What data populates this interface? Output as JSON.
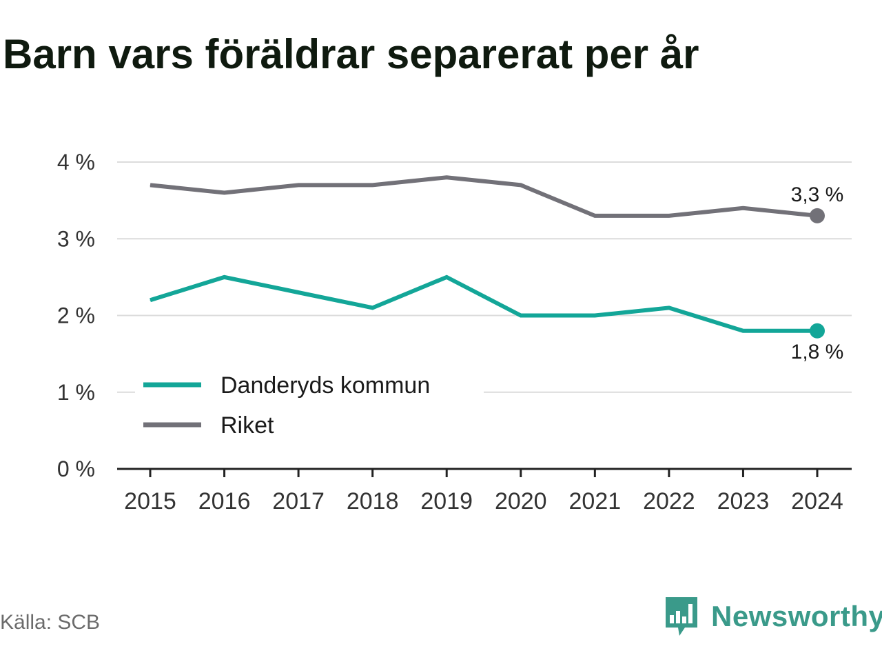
{
  "title": "Barn vars föräldrar separerat per år",
  "source": "Källa: SCB",
  "brand": {
    "name": "Newsworthy",
    "icon": "newsworthy-logo-icon",
    "color": "#3a9a8a"
  },
  "chart_data": {
    "type": "line",
    "title": "Barn vars föräldrar separerat per år",
    "x": [
      "2015",
      "2016",
      "2017",
      "2018",
      "2019",
      "2020",
      "2021",
      "2022",
      "2023",
      "2024"
    ],
    "y_ticks": [
      0,
      1,
      2,
      3,
      4
    ],
    "y_tick_labels": [
      "0 %",
      "1 %",
      "2 %",
      "3 %",
      "4 %"
    ],
    "ylim": [
      0,
      4
    ],
    "xlabel": "",
    "ylabel": "",
    "grid": "horizontal",
    "legend_position": "bottom-left",
    "series": [
      {
        "name": "Danderyds kommun",
        "color": "#13a698",
        "values": [
          2.2,
          2.5,
          2.3,
          2.1,
          2.5,
          2.0,
          2.0,
          2.1,
          1.8,
          1.8
        ],
        "end_label": "1,8 %"
      },
      {
        "name": "Riket",
        "color": "#727178",
        "values": [
          3.7,
          3.6,
          3.7,
          3.7,
          3.8,
          3.7,
          3.3,
          3.3,
          3.4,
          3.3
        ],
        "end_label": "3,3 %"
      }
    ]
  }
}
